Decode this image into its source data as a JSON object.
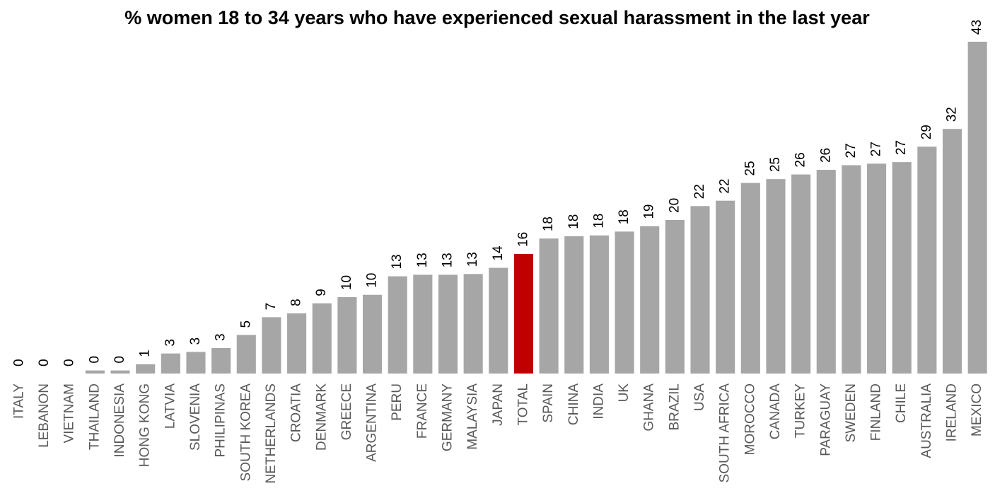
{
  "chart_data": {
    "type": "bar",
    "title": "% women 18 to 34 years who have experienced sexual harassment in the last year",
    "categories": [
      "ITALY",
      "LEBANON",
      "VIETNAM",
      "THAILAND",
      "INDONESIA",
      "HONG KONG",
      "LATVIA",
      "SLOVENIA",
      "PHILIPINAS",
      "SOUTH KOREA",
      "NETHERLANDS",
      "CROATIA",
      "DENMARK",
      "GREECE",
      "ARGENTINA",
      "PERU",
      "FRANCE",
      "GERMANY",
      "MALAYSIA",
      "JAPAN",
      "TOTAL",
      "SPAIN",
      "CHINA",
      "INDIA",
      "UK",
      "GHANA",
      "BRAZIL",
      "USA",
      "SOUTH AFRICA",
      "MOROCCO",
      "CANADA",
      "TURKEY",
      "PARAGUAY",
      "SWEDEN",
      "FINLAND",
      "CHILE",
      "AUSTRALIA",
      "IRELAND",
      "MEXICO"
    ],
    "values": [
      0,
      0,
      0,
      0.4,
      0.4,
      1.2,
      2.6,
      2.8,
      3.3,
      5,
      7.3,
      7.8,
      9.1,
      9.9,
      10.2,
      12.6,
      12.8,
      12.8,
      12.9,
      13.7,
      15.5,
      17.5,
      17.8,
      17.9,
      18.4,
      19.1,
      19.9,
      21.7,
      22.4,
      24.7,
      25.2,
      25.8,
      26.4,
      27,
      27.2,
      27.4,
      29.4,
      31.7,
      43
    ],
    "value_labels": [
      "0",
      "0",
      "0",
      "0",
      "0",
      "1",
      "3",
      "3",
      "3",
      "5",
      "7",
      "8",
      "9",
      "10",
      "10",
      "13",
      "13",
      "13",
      "13",
      "14",
      "16",
      "18",
      "18",
      "18",
      "18",
      "19",
      "20",
      "22",
      "22",
      "25",
      "25",
      "26",
      "26",
      "27",
      "27",
      "27",
      "29",
      "32",
      "43"
    ],
    "color": "#a6a6a6",
    "highlight": {
      "category": "TOTAL",
      "color": "#c00000"
    },
    "ylim": [
      0,
      43
    ]
  }
}
